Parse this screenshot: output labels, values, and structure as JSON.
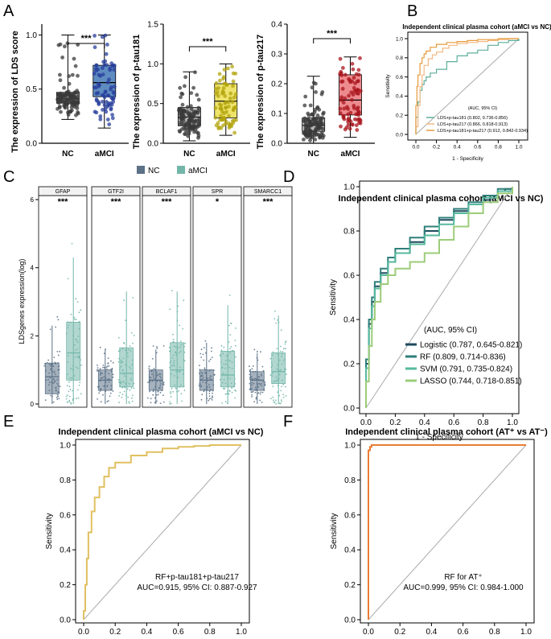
{
  "panels": {
    "A": "A",
    "B": "B",
    "C": "C",
    "D": "D",
    "E": "E",
    "F": "F"
  },
  "chart_data": [
    {
      "id": "A1",
      "type": "box",
      "categories": [
        "NC",
        "aMCI"
      ],
      "ylabel": "The expression of LDS score",
      "ylim": [
        0,
        1.1
      ],
      "yticks": [
        "0.0",
        "0.5",
        "1.0"
      ],
      "ytick_values": [
        0,
        0.5,
        1.0
      ],
      "box_stats": [
        {
          "min": 0.22,
          "q1": 0.37,
          "median": 0.41,
          "q3": 0.47,
          "max": 1.0
        },
        {
          "min": 0.14,
          "q1": 0.43,
          "median": 0.56,
          "q3": 0.72,
          "max": 1.0
        }
      ],
      "box_colors": [
        "#bdbdbd",
        "#5f8dc1"
      ],
      "point_colors": [
        "#3a3a3a",
        "#283f9c"
      ],
      "significance": "***"
    },
    {
      "id": "A2",
      "type": "box",
      "categories": [
        "NC",
        "aMCI"
      ],
      "ylabel": "The expression of p-tau181",
      "ylim": [
        0,
        1.5
      ],
      "yticks": [
        "0.0",
        "0.5",
        "1.0",
        "1.5"
      ],
      "ytick_values": [
        0,
        0.5,
        1.0,
        1.5
      ],
      "box_stats": [
        {
          "min": 0.03,
          "q1": 0.22,
          "median": 0.33,
          "q3": 0.45,
          "max": 0.9
        },
        {
          "min": 0.1,
          "q1": 0.32,
          "median": 0.53,
          "q3": 0.75,
          "max": 1.0
        }
      ],
      "box_colors": [
        "#bdbdbd",
        "#eee46c"
      ],
      "point_colors": [
        "#3a3a3a",
        "#b3a40e"
      ],
      "significance": "***"
    },
    {
      "id": "A3",
      "type": "box",
      "categories": [
        "NC",
        "aMCI"
      ],
      "ylabel": "The expression of p-tau217",
      "ylim": [
        0,
        0.4
      ],
      "yticks": [
        "0.0",
        "0.1",
        "0.2",
        "0.3",
        "0.4"
      ],
      "ytick_values": [
        0,
        0.1,
        0.2,
        0.3,
        0.4
      ],
      "box_stats": [
        {
          "min": 0.0,
          "q1": 0.04,
          "median": 0.06,
          "q3": 0.085,
          "max": 0.225
        },
        {
          "min": 0.02,
          "q1": 0.095,
          "median": 0.145,
          "q3": 0.23,
          "max": 0.29
        }
      ],
      "box_colors": [
        "#bdbdbd",
        "#ee8b8f"
      ],
      "point_colors": [
        "#3a3a3a",
        "#a8141c"
      ],
      "significance": "***"
    },
    {
      "id": "B",
      "type": "line",
      "title": "Independent clinical plasma cohort (aMCI vs NC)",
      "xlabel": "1 - Specificity",
      "ylabel": "Sensitivity",
      "xticks": [
        "0.0",
        "0.2",
        "0.4",
        "0.6",
        "0.8",
        "1.0"
      ],
      "yticks": [
        "0.0",
        "0.2",
        "0.4",
        "0.6",
        "0.8",
        "1.0"
      ],
      "legend_title": "(AUC, 95% CI)",
      "series": [
        {
          "name": "LDS+p-tau181 (0.802, 0.736-0.856)",
          "color": "#5dae9b",
          "x": [
            0,
            0,
            0.02,
            0.04,
            0.06,
            0.08,
            0.1,
            0.14,
            0.2,
            0.3,
            0.4,
            0.5,
            0.6,
            0.7,
            0.8,
            0.9,
            1
          ],
          "y": [
            0,
            0.18,
            0.34,
            0.46,
            0.52,
            0.56,
            0.6,
            0.64,
            0.68,
            0.76,
            0.82,
            0.85,
            0.88,
            0.93,
            0.96,
            0.98,
            1
          ]
        },
        {
          "name": "LDS+p-tau217 (0.866, 0.818-0.913)",
          "color": "#f2b880",
          "x": [
            0,
            0,
            0.02,
            0.04,
            0.06,
            0.08,
            0.12,
            0.16,
            0.2,
            0.26,
            0.32,
            0.4,
            0.5,
            0.6,
            0.7,
            0.8,
            0.9,
            1
          ],
          "y": [
            0,
            0.08,
            0.3,
            0.5,
            0.62,
            0.72,
            0.79,
            0.83,
            0.86,
            0.9,
            0.93,
            0.95,
            0.96,
            0.97,
            0.98,
            0.99,
            1,
            1
          ]
        },
        {
          "name": "LDS+p-tau181+p-tau217 (0.912, 0.842-0.934)",
          "color": "#e79a3b",
          "x": [
            0,
            0,
            0.01,
            0.02,
            0.04,
            0.06,
            0.08,
            0.1,
            0.14,
            0.2,
            0.3,
            0.4,
            0.5,
            0.6,
            0.8,
            1
          ],
          "y": [
            0,
            0.3,
            0.5,
            0.62,
            0.74,
            0.8,
            0.84,
            0.87,
            0.91,
            0.94,
            0.96,
            0.97,
            0.98,
            0.99,
            1,
            1
          ]
        }
      ]
    },
    {
      "id": "C",
      "type": "box",
      "ylabel": "LDSgenes expression(log)",
      "ylim": [
        0,
        6
      ],
      "yticks": [
        "0",
        "2",
        "4",
        "6"
      ],
      "ytick_values": [
        0,
        2,
        4,
        6
      ],
      "legend": [
        "NC",
        "aMCI"
      ],
      "colors": [
        "#5b7186",
        "#72b6a9"
      ],
      "facets": [
        {
          "name": "GFAP",
          "sig": "***",
          "nc": {
            "min": 0,
            "q1": 0.3,
            "median": 0.8,
            "q3": 1.2,
            "max": 2.3
          },
          "amci": {
            "min": 0,
            "q1": 0.7,
            "median": 1.5,
            "q3": 2.4,
            "max": 4.3
          }
        },
        {
          "name": "GTF2I",
          "sig": "***",
          "nc": {
            "min": 0,
            "q1": 0.4,
            "median": 0.7,
            "q3": 1.0,
            "max": 1.6
          },
          "amci": {
            "min": 0,
            "q1": 0.5,
            "median": 0.9,
            "q3": 1.65,
            "max": 3.3
          }
        },
        {
          "name": "BCLAF1",
          "sig": "***",
          "nc": {
            "min": 0,
            "q1": 0.4,
            "median": 0.7,
            "q3": 1.0,
            "max": 1.6
          },
          "amci": {
            "min": 0,
            "q1": 0.5,
            "median": 1.0,
            "q3": 1.8,
            "max": 3.3
          }
        },
        {
          "name": "SPR",
          "sig": "*",
          "nc": {
            "min": 0,
            "q1": 0.4,
            "median": 0.7,
            "q3": 1.0,
            "max": 1.8
          },
          "amci": {
            "min": 0,
            "q1": 0.5,
            "median": 0.85,
            "q3": 1.55,
            "max": 2.9
          }
        },
        {
          "name": "SMARCC1",
          "sig": "***",
          "nc": {
            "min": 0,
            "q1": 0.4,
            "median": 0.7,
            "q3": 0.95,
            "max": 1.5
          },
          "amci": {
            "min": 0,
            "q1": 0.6,
            "median": 0.95,
            "q3": 1.5,
            "max": 2.6
          }
        }
      ]
    },
    {
      "id": "D",
      "type": "line",
      "title": "Independent clinical plasma cohort (aMCI vs NC)",
      "xlabel": "1 - Specificity",
      "ylabel": "Sensitivity",
      "xticks": [
        "0.0",
        "0.2",
        "0.4",
        "0.6",
        "0.8",
        "1.0"
      ],
      "yticks": [
        "0.0",
        "0.2",
        "0.4",
        "0.6",
        "0.8",
        "1.0"
      ],
      "legend_title": "(AUC, 95% CI)",
      "series": [
        {
          "name": "Logistic (0.787, 0.645-0.821)",
          "color": "#1e4a5c",
          "x": [
            0,
            0,
            0.02,
            0.04,
            0.06,
            0.1,
            0.15,
            0.2,
            0.3,
            0.4,
            0.5,
            0.6,
            0.7,
            0.8,
            0.85,
            0.9,
            0.95,
            1
          ],
          "y": [
            0,
            0.2,
            0.38,
            0.48,
            0.55,
            0.61,
            0.66,
            0.7,
            0.75,
            0.8,
            0.85,
            0.89,
            0.92,
            0.94,
            0.96,
            0.98,
            0.99,
            1
          ]
        },
        {
          "name": "RF (0.809, 0.714-0.836)",
          "color": "#2f7f7a",
          "x": [
            0,
            0,
            0.02,
            0.04,
            0.06,
            0.1,
            0.15,
            0.2,
            0.3,
            0.4,
            0.5,
            0.6,
            0.7,
            0.8,
            0.9,
            1
          ],
          "y": [
            0,
            0.22,
            0.4,
            0.5,
            0.57,
            0.63,
            0.68,
            0.72,
            0.77,
            0.82,
            0.86,
            0.9,
            0.93,
            0.96,
            0.99,
            1
          ]
        },
        {
          "name": "SVM (0.791, 0.735-0.824)",
          "color": "#56b99e",
          "x": [
            0,
            0,
            0.02,
            0.04,
            0.06,
            0.1,
            0.15,
            0.2,
            0.3,
            0.4,
            0.5,
            0.6,
            0.7,
            0.8,
            0.9,
            1
          ],
          "y": [
            0,
            0.18,
            0.36,
            0.46,
            0.54,
            0.6,
            0.66,
            0.7,
            0.74,
            0.78,
            0.83,
            0.88,
            0.92,
            0.95,
            0.98,
            1
          ]
        },
        {
          "name": "LASSO (0.744, 0.718-0.851)",
          "color": "#9ccc7a",
          "x": [
            0,
            0,
            0.02,
            0.04,
            0.06,
            0.1,
            0.15,
            0.2,
            0.3,
            0.4,
            0.5,
            0.6,
            0.7,
            0.8,
            0.9,
            1
          ],
          "y": [
            0,
            0.12,
            0.28,
            0.4,
            0.48,
            0.56,
            0.6,
            0.63,
            0.66,
            0.7,
            0.76,
            0.82,
            0.88,
            0.93,
            0.97,
            1
          ]
        }
      ]
    },
    {
      "id": "E",
      "type": "line",
      "title": "Independent clinical plasma cohort (aMCI vs NC)",
      "xlabel": "1 - Specificity",
      "ylabel": "Sensitivity",
      "xticks": [
        "0.0",
        "0.2",
        "0.4",
        "0.6",
        "0.8",
        "1.0"
      ],
      "yticks": [
        "0.0",
        "0.2",
        "0.4",
        "0.6",
        "0.8",
        "1.0"
      ],
      "annotation": [
        "RF+p-tau181+p-tau217",
        "AUC=0.915, 95% CI: 0.887-0.927"
      ],
      "series": [
        {
          "name": "RF+p-tau181+p-tau217",
          "color": "#e0c060",
          "x": [
            0,
            0,
            0.01,
            0.02,
            0.03,
            0.05,
            0.07,
            0.1,
            0.13,
            0.16,
            0.2,
            0.3,
            0.4,
            0.5,
            0.6,
            0.7,
            0.8,
            0.9,
            1
          ],
          "y": [
            0,
            0.05,
            0.2,
            0.35,
            0.5,
            0.62,
            0.7,
            0.76,
            0.82,
            0.87,
            0.9,
            0.94,
            0.96,
            0.98,
            0.99,
            0.995,
            1,
            1,
            1
          ]
        }
      ]
    },
    {
      "id": "F",
      "type": "line",
      "title": "Independent clinical plasma cohort (AT⁺ vs AT⁻)",
      "xlabel": "1 - Specificity",
      "ylabel": "Sensitivity",
      "xticks": [
        "0.0",
        "0.2",
        "0.4",
        "0.6",
        "0.8",
        "1.0"
      ],
      "yticks": [
        "0.0",
        "0.2",
        "0.4",
        "0.6",
        "0.8",
        "1.0"
      ],
      "annotation": [
        "RF for AT⁺",
        "AUC=0.999, 95% CI: 0.984-1.000"
      ],
      "series": [
        {
          "name": "RF for AT⁺",
          "color": "#e87d34",
          "x": [
            0,
            0,
            0.01,
            0.02,
            0.05,
            1
          ],
          "y": [
            0,
            0.97,
            0.99,
            1,
            1,
            1
          ]
        }
      ]
    }
  ]
}
